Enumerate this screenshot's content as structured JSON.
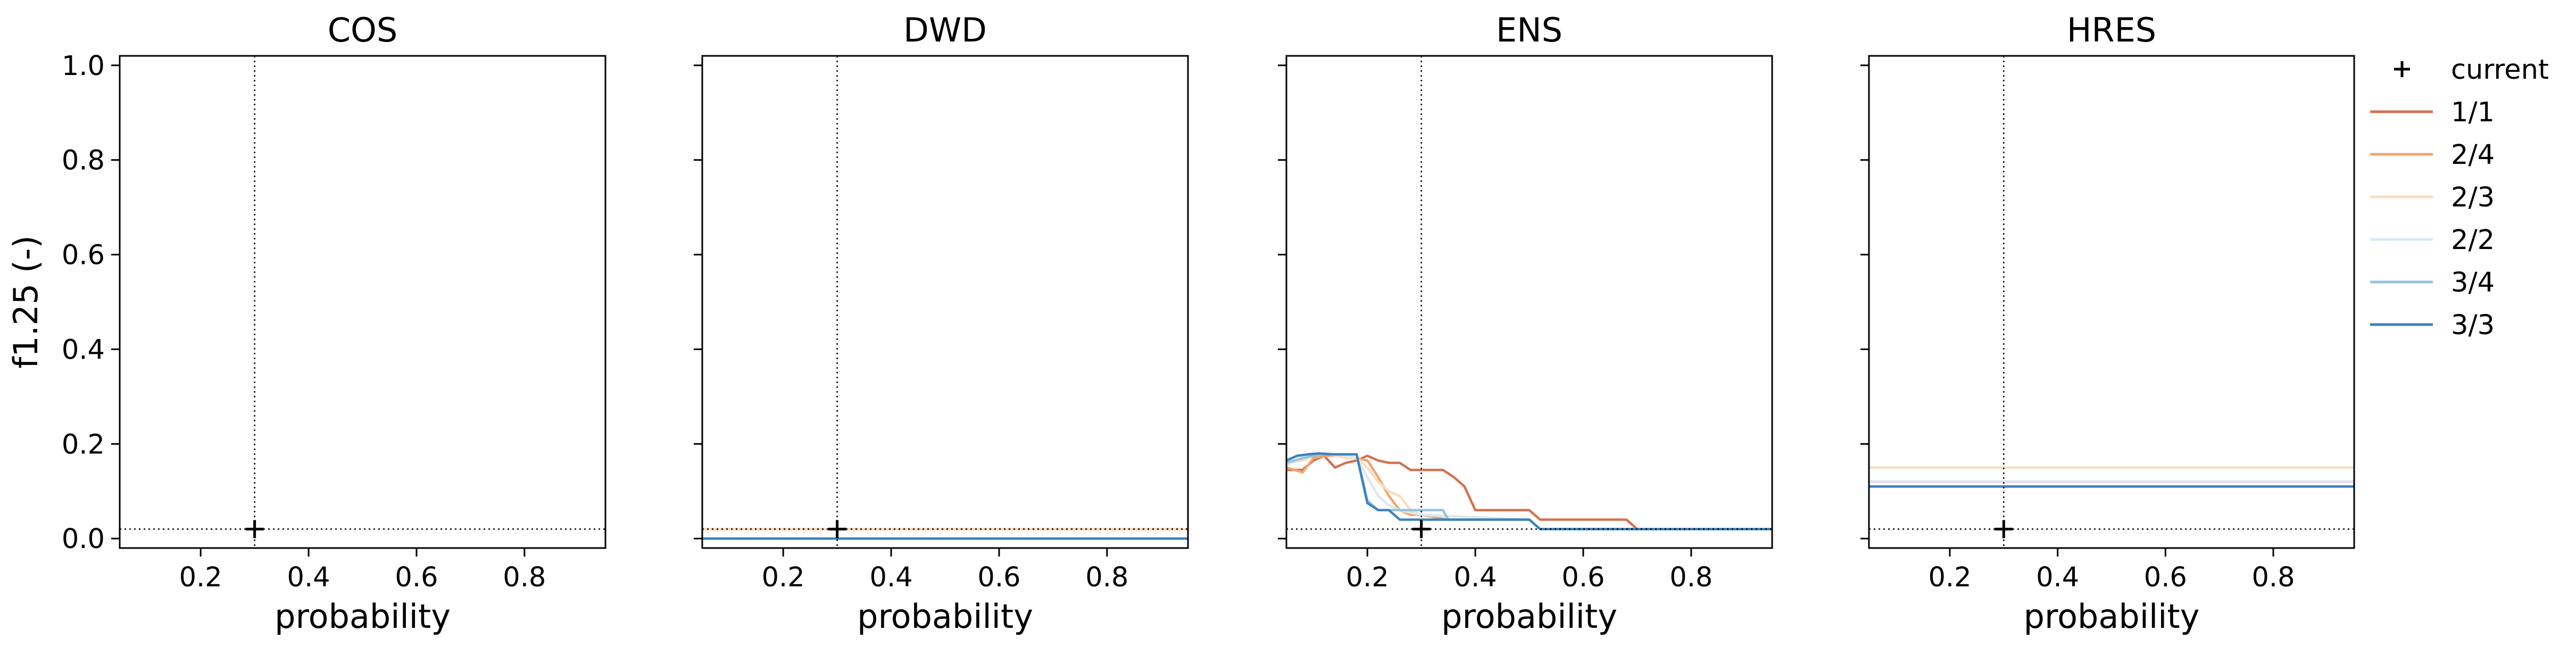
{
  "figure": {
    "ylabel": "f1.25 (-)"
  },
  "legend": {
    "placement": "right, outside top",
    "entries": [
      {
        "label": "current",
        "marker": "plus",
        "color": "#000000"
      },
      {
        "label": "1/1",
        "color": "#d4714e"
      },
      {
        "label": "2/4",
        "color": "#f4a46c"
      },
      {
        "label": "2/3",
        "color": "#fbdcc0"
      },
      {
        "label": "2/2",
        "color": "#dce8f2"
      },
      {
        "label": "3/4",
        "color": "#94c2df"
      },
      {
        "label": "3/3",
        "color": "#3c82bc"
      }
    ]
  },
  "chart_data": [
    {
      "type": "line",
      "title": "COS",
      "xlabel": "probability",
      "ylabel": "f1.25 (-)",
      "xlim": [
        0.05,
        0.95
      ],
      "ylim": [
        -0.02,
        1.02
      ],
      "xticks": [
        "0.2",
        "0.4",
        "0.6",
        "0.8"
      ],
      "yticks": [
        "0.0",
        "0.2",
        "0.4",
        "0.6",
        "0.8",
        "1.0"
      ],
      "current": {
        "x": 0.3,
        "y": 0.02
      },
      "series": []
    },
    {
      "type": "line",
      "title": "DWD",
      "xlabel": "probability",
      "xlim": [
        0.05,
        0.95
      ],
      "ylim": [
        -0.02,
        1.02
      ],
      "xticks": [
        "0.2",
        "0.4",
        "0.6",
        "0.8"
      ],
      "current": {
        "x": 0.3,
        "y": 0.02
      },
      "series": [
        {
          "name": "1/1",
          "x": [
            0.05,
            0.95
          ],
          "y": [
            0.02,
            0.02
          ]
        },
        {
          "name": "2/4",
          "x": [
            0.05,
            0.95
          ],
          "y": [
            0.02,
            0.02
          ]
        },
        {
          "name": "2/3",
          "x": [
            0.05,
            0.95
          ],
          "y": [
            0.02,
            0.02
          ]
        },
        {
          "name": "2/2",
          "x": [
            0.05,
            0.95
          ],
          "y": [
            0.0,
            0.0
          ]
        },
        {
          "name": "3/4",
          "x": [
            0.05,
            0.95
          ],
          "y": [
            0.0,
            0.0
          ]
        },
        {
          "name": "3/3",
          "x": [
            0.05,
            0.95
          ],
          "y": [
            0.0,
            0.0
          ]
        }
      ]
    },
    {
      "type": "line",
      "title": "ENS",
      "xlabel": "probability",
      "xlim": [
        0.05,
        0.95
      ],
      "ylim": [
        -0.02,
        1.02
      ],
      "xticks": [
        "0.2",
        "0.4",
        "0.6",
        "0.8"
      ],
      "current": {
        "x": 0.3,
        "y": 0.02
      },
      "series": [
        {
          "name": "1/1",
          "x": [
            0.05,
            0.08,
            0.1,
            0.12,
            0.14,
            0.16,
            0.18,
            0.2,
            0.22,
            0.24,
            0.26,
            0.28,
            0.3,
            0.32,
            0.34,
            0.36,
            0.38,
            0.4,
            0.5,
            0.52,
            0.55,
            0.6,
            0.68,
            0.7,
            0.95
          ],
          "y": [
            0.145,
            0.145,
            0.165,
            0.175,
            0.15,
            0.16,
            0.165,
            0.175,
            0.165,
            0.16,
            0.16,
            0.145,
            0.145,
            0.145,
            0.145,
            0.13,
            0.11,
            0.06,
            0.06,
            0.04,
            0.04,
            0.04,
            0.04,
            0.02,
            0.02
          ]
        },
        {
          "name": "2/4",
          "x": [
            0.05,
            0.08,
            0.1,
            0.12,
            0.14,
            0.16,
            0.18,
            0.2,
            0.22,
            0.24,
            0.26,
            0.28,
            0.3,
            0.35,
            0.5,
            0.52,
            0.95
          ],
          "y": [
            0.15,
            0.14,
            0.17,
            0.175,
            0.175,
            0.175,
            0.17,
            0.165,
            0.13,
            0.09,
            0.06,
            0.05,
            0.05,
            0.04,
            0.04,
            0.02,
            0.02
          ]
        },
        {
          "name": "2/3",
          "x": [
            0.05,
            0.08,
            0.1,
            0.12,
            0.14,
            0.16,
            0.18,
            0.2,
            0.22,
            0.24,
            0.26,
            0.28,
            0.3,
            0.5,
            0.52,
            0.95
          ],
          "y": [
            0.16,
            0.165,
            0.175,
            0.18,
            0.175,
            0.17,
            0.17,
            0.15,
            0.12,
            0.1,
            0.09,
            0.06,
            0.05,
            0.04,
            0.02,
            0.02
          ]
        },
        {
          "name": "2/2",
          "x": [
            0.05,
            0.08,
            0.1,
            0.12,
            0.14,
            0.16,
            0.18,
            0.2,
            0.22,
            0.24,
            0.26,
            0.3,
            0.5,
            0.52,
            0.95
          ],
          "y": [
            0.155,
            0.17,
            0.175,
            0.18,
            0.178,
            0.175,
            0.17,
            0.13,
            0.09,
            0.07,
            0.06,
            0.05,
            0.04,
            0.02,
            0.02
          ]
        },
        {
          "name": "3/4",
          "x": [
            0.05,
            0.08,
            0.1,
            0.12,
            0.14,
            0.16,
            0.18,
            0.2,
            0.22,
            0.24,
            0.26,
            0.34,
            0.35,
            0.5,
            0.52,
            0.95
          ],
          "y": [
            0.16,
            0.17,
            0.175,
            0.18,
            0.178,
            0.178,
            0.178,
            0.08,
            0.06,
            0.06,
            0.06,
            0.06,
            0.04,
            0.04,
            0.02,
            0.02
          ]
        },
        {
          "name": "3/3",
          "x": [
            0.05,
            0.07,
            0.09,
            0.11,
            0.13,
            0.15,
            0.18,
            0.2,
            0.22,
            0.24,
            0.26,
            0.28,
            0.5,
            0.52,
            0.95
          ],
          "y": [
            0.165,
            0.175,
            0.178,
            0.18,
            0.178,
            0.178,
            0.178,
            0.075,
            0.06,
            0.06,
            0.04,
            0.04,
            0.04,
            0.02,
            0.02
          ]
        }
      ]
    },
    {
      "type": "line",
      "title": "HRES",
      "xlabel": "probability",
      "xlim": [
        0.05,
        0.95
      ],
      "ylim": [
        -0.02,
        1.02
      ],
      "xticks": [
        "0.2",
        "0.4",
        "0.6",
        "0.8"
      ],
      "current": {
        "x": 0.3,
        "y": 0.02
      },
      "series": [
        {
          "name": "1/1",
          "x": [
            0.05,
            0.95
          ],
          "y": [
            0.12,
            0.12
          ]
        },
        {
          "name": "2/4",
          "x": [
            0.05,
            0.95
          ],
          "y": [
            0.12,
            0.12
          ]
        },
        {
          "name": "2/3",
          "x": [
            0.05,
            0.95
          ],
          "y": [
            0.15,
            0.15
          ]
        },
        {
          "name": "2/2",
          "x": [
            0.05,
            0.95
          ],
          "y": [
            0.12,
            0.12
          ]
        },
        {
          "name": "3/4",
          "x": [
            0.05,
            0.95
          ],
          "y": [
            0.11,
            0.11
          ]
        },
        {
          "name": "3/3",
          "x": [
            0.05,
            0.95
          ],
          "y": [
            0.11,
            0.11
          ]
        }
      ]
    }
  ]
}
